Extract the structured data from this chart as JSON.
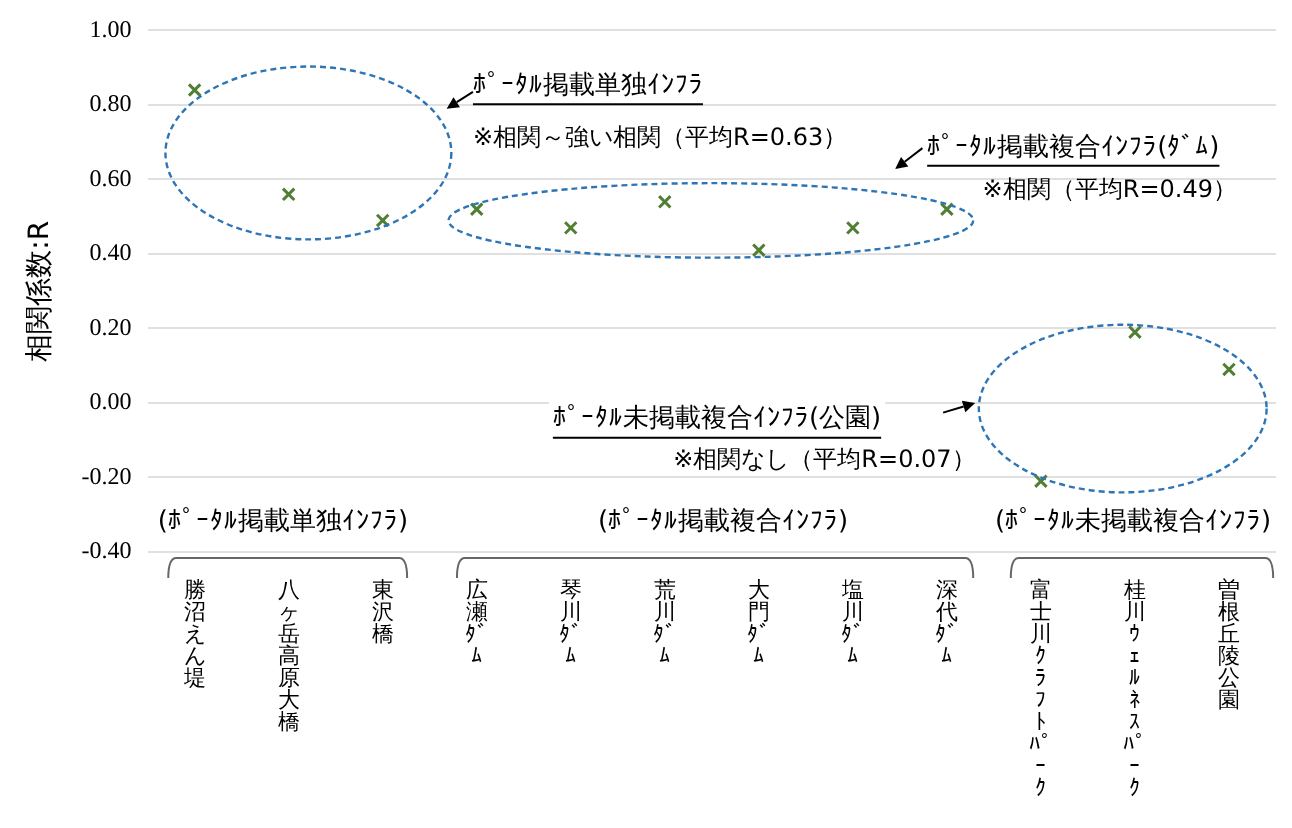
{
  "chart_data": {
    "type": "scatter",
    "ylabel": "相関係数:R",
    "categories": [
      "勝沼えん堤",
      "八ヶ岳高原大橋",
      "東沢橋",
      "広瀬ﾀﾞﾑ",
      "琴川ﾀﾞﾑ",
      "荒川ﾀﾞﾑ",
      "大門ﾀﾞﾑ",
      "塩川ﾀﾞﾑ",
      "深代ﾀﾞﾑ",
      "富士川ｸﾗﾌﾄﾊﾟｰｸ",
      "桂川ｳｪﾙﾈｽﾊﾟｰｸ",
      "曽根丘陵公園"
    ],
    "values": [
      0.84,
      0.56,
      0.49,
      0.52,
      0.47,
      0.54,
      0.41,
      0.47,
      0.52,
      -0.21,
      0.19,
      0.09
    ],
    "color": "#507e32",
    "marker": "cross",
    "grid": "y",
    "ylim": [
      -0.4,
      1.0
    ],
    "yticks": [
      {
        "value": 1,
        "label": "1.00"
      },
      {
        "value": 0.8,
        "label": "0.80"
      },
      {
        "value": 0.6,
        "label": "0.60"
      },
      {
        "value": 0.4,
        "label": "0.40"
      },
      {
        "value": 0.2,
        "label": "0.20"
      },
      {
        "value": 0,
        "label": "0.00"
      },
      {
        "value": -0.2,
        "label": "-0.20"
      },
      {
        "value": -0.4,
        "label": "-0.40"
      }
    ],
    "annotations": [
      "ﾎﾟｰﾀﾙ掲載単独ｲﾝﾌﾗ",
      "※相関～強い相関（平均R=0.63）",
      "ﾎﾟｰﾀﾙ掲載複合ｲﾝﾌﾗ(ﾀﾞﾑ)",
      "※相関（平均R=0.49）",
      "ﾎﾟｰﾀﾙ未掲載複合ｲﾝﾌﾗ(公園)",
      "※相関なし（平均R=0.07）",
      "(ﾎﾟｰﾀﾙ掲載単独ｲﾝﾌﾗ)",
      "(ﾎﾟｰﾀﾙ掲載複合ｲﾝﾌﾗ)",
      "(ﾎﾟｰﾀﾙ未掲載複合ｲﾝﾌﾗ)"
    ]
  }
}
